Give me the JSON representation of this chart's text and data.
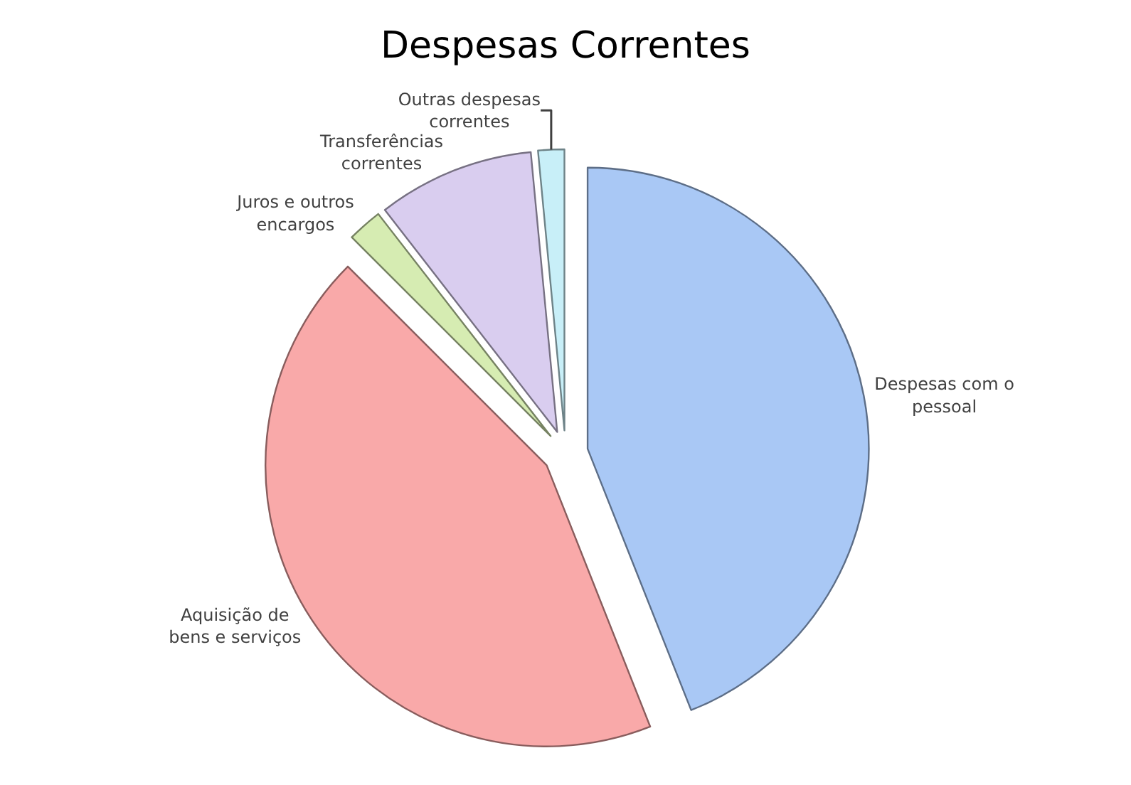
{
  "chart_data": {
    "type": "pie",
    "title": "Despesas Correntes",
    "categories": [
      "Despesas com o pessoal",
      "Aquisição de bens e serviços",
      "Juros e outros encargos",
      "Transferências correntes",
      "Outras despesas correntes"
    ],
    "values": [
      44,
      43.5,
      2,
      9,
      1.5
    ],
    "colors": [
      "#a9c8f5",
      "#f9a9a9",
      "#d6ecb2",
      "#d9cdef",
      "#c8eff8"
    ],
    "legend": false
  }
}
